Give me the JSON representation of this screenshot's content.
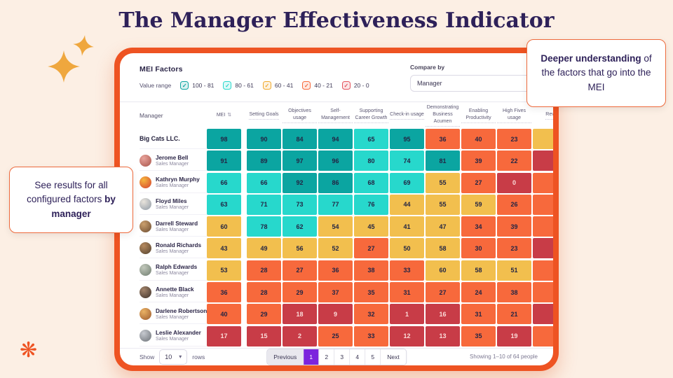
{
  "page": {
    "title": "The Manager Effectiveness Indicator"
  },
  "callouts": {
    "left": {
      "pre": "See results for all configured factors ",
      "bold": "by manager",
      "post": ""
    },
    "right": {
      "pre": "",
      "bold": "Deeper understanding",
      "post": " of the factors that go into the MEI"
    }
  },
  "panel": {
    "title": "MEI Factors",
    "value_range_label": "Value range",
    "ranges": [
      {
        "label": "100 - 81",
        "color": "#0ba5a1"
      },
      {
        "label": "80 - 61",
        "color": "#27d8cc"
      },
      {
        "label": "60 - 41",
        "color": "#f0a92e"
      },
      {
        "label": "40 - 21",
        "color": "#f7693c"
      },
      {
        "label": "20 - 0",
        "color": "#e4535c"
      }
    ],
    "compare_by": {
      "label": "Compare by",
      "value": "Manager"
    }
  },
  "table": {
    "manager_col": "Manager",
    "mei_col": "MEI",
    "factor_cols": [
      "Setting Goals",
      "Objectives usage",
      "Self-Management",
      "Supporting Career Growth",
      "Check-in usage",
      "Demonstrating Business Acumen",
      "Enabling Productivity",
      "High Fives usage",
      "Rev"
    ],
    "rows": [
      {
        "name": "Big Cats LLC.",
        "role": null,
        "values": [
          98,
          90,
          84,
          94,
          65,
          95,
          36,
          40,
          23
        ],
        "extra": "yellow"
      },
      {
        "name": "Jerome Bell",
        "role": "Sales Manager",
        "values": [
          91,
          89,
          97,
          96,
          80,
          74,
          81,
          39,
          22
        ],
        "extra": "red",
        "avatar": [
          "#e8a39b",
          "#a8544a"
        ]
      },
      {
        "name": "Kathryn Murphy",
        "role": "Sales Manager",
        "values": [
          66,
          66,
          92,
          86,
          68,
          69,
          55,
          27,
          0
        ],
        "extra": "orange",
        "avatar": [
          "#f5b63e",
          "#d5402f"
        ]
      },
      {
        "name": "Floyd Miles",
        "role": "Sales Manager",
        "values": [
          63,
          71,
          73,
          77,
          76,
          44,
          55,
          59,
          26
        ],
        "extra": "orange",
        "avatar": [
          "#e9e4dc",
          "#8f9aa6"
        ]
      },
      {
        "name": "Darrell Steward",
        "role": "Sales Manager",
        "values": [
          60,
          78,
          62,
          54,
          45,
          41,
          47,
          34,
          39
        ],
        "extra": "orange",
        "avatar": [
          "#cba06e",
          "#6b4b31"
        ]
      },
      {
        "name": "Ronald Richards",
        "role": "Sales Manager",
        "values": [
          43,
          49,
          56,
          52,
          27,
          50,
          58,
          30,
          23
        ],
        "extra": "red",
        "avatar": [
          "#b68a5f",
          "#53412e"
        ]
      },
      {
        "name": "Ralph Edwards",
        "role": "Sales Manager",
        "values": [
          53,
          28,
          27,
          36,
          38,
          33,
          60,
          58,
          51
        ],
        "extra": "orange",
        "avatar": [
          "#c2c8bb",
          "#6f7d70"
        ]
      },
      {
        "name": "Annette Black",
        "role": "Sales Manager",
        "values": [
          36,
          28,
          29,
          37,
          35,
          31,
          27,
          24,
          38
        ],
        "extra": "orange",
        "avatar": [
          "#a3846b",
          "#3f322b"
        ]
      },
      {
        "name": "Darlene Robertson",
        "role": "Sales Manager",
        "values": [
          40,
          29,
          18,
          9,
          32,
          1,
          16,
          31,
          21
        ],
        "extra": "red",
        "avatar": [
          "#eab264",
          "#9c5a2e"
        ]
      },
      {
        "name": "Leslie Alexander",
        "role": "Sales Manager",
        "values": [
          17,
          15,
          2,
          25,
          33,
          12,
          13,
          35,
          19
        ],
        "extra": "orange",
        "avatar": [
          "#c6c9cf",
          "#6c7177"
        ]
      }
    ]
  },
  "footer": {
    "show_label": "Show",
    "rows_value": "10",
    "rows_label": "rows",
    "prev_label": "Previous",
    "pages": [
      "1",
      "2",
      "3",
      "4",
      "5"
    ],
    "active_page": "1",
    "next_label": "Next",
    "summary": "Showing 1–10 of 64 people"
  },
  "icons": {
    "sort": "⇅",
    "chevron": "▾",
    "check": "✓",
    "logo": "❋"
  },
  "colors": {
    "accent_orange": "#ee5322",
    "title_purple": "#2e2159",
    "callout_border": "#ee6a3c",
    "pagination_active": "#7c24dd",
    "pagination_active_text": "#ffffff",
    "sparkle": "#efa73e",
    "cells": {
      "teal": "#0ba5a1",
      "cyan": "#27d8cc",
      "yellow": "#f2bf4e",
      "orange": "#f7693c",
      "red": "#c83c47"
    },
    "cell_text": "#232544",
    "red_cell_text": "#fbdcd9"
  }
}
